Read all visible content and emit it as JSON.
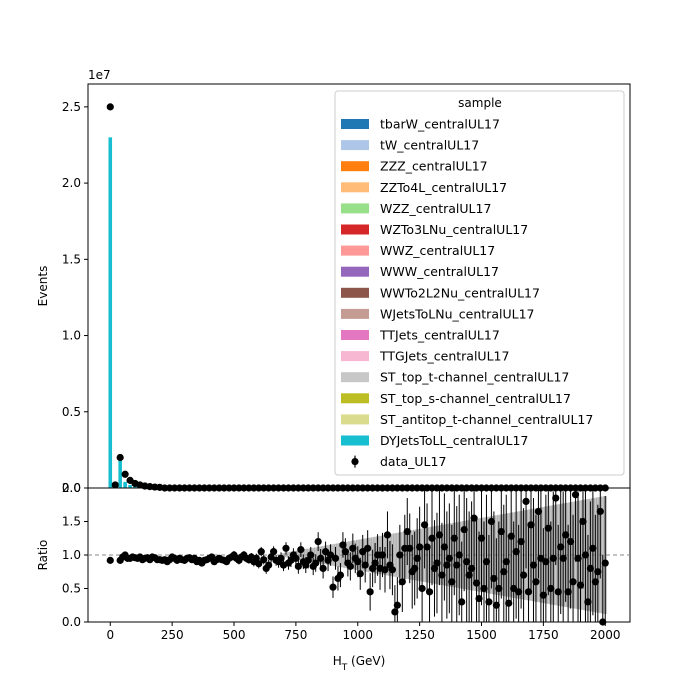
{
  "chart_data": [
    {
      "type": "bar",
      "panel": "main",
      "ylabel": "Events",
      "y_multiplier": "1e7",
      "ylim": [
        0,
        26500000
      ],
      "yticks": [
        0.0,
        0.5,
        1.0,
        1.5,
        2.0,
        2.5
      ],
      "ytick_labels": [
        "0.0",
        "0.5",
        "1.0",
        "1.5",
        "2.0",
        "2.5"
      ],
      "stacked": true,
      "legend": {
        "title": "sample",
        "placement": "upper-right",
        "entries": [
          {
            "name": "tbarW_centralUL17",
            "color": "#1f77b4",
            "marker": "patch"
          },
          {
            "name": "tW_centralUL17",
            "color": "#aec7e8",
            "marker": "patch"
          },
          {
            "name": "ZZZ_centralUL17",
            "color": "#ff7f0e",
            "marker": "patch"
          },
          {
            "name": "ZZTo4L_centralUL17",
            "color": "#ffbb78",
            "marker": "patch"
          },
          {
            "name": "WZZ_centralUL17",
            "color": "#98df8a",
            "marker": "patch"
          },
          {
            "name": "WZTo3LNu_centralUL17",
            "color": "#d62728",
            "marker": "patch"
          },
          {
            "name": "WWZ_centralUL17",
            "color": "#ff9896",
            "marker": "patch"
          },
          {
            "name": "WWW_centralUL17",
            "color": "#9467bd",
            "marker": "patch"
          },
          {
            "name": "WWTo2L2Nu_centralUL17",
            "color": "#8c564b",
            "marker": "patch"
          },
          {
            "name": "WJetsToLNu_centralUL17",
            "color": "#c49c94",
            "marker": "patch"
          },
          {
            "name": "TTJets_centralUL17",
            "color": "#e377c2",
            "marker": "patch"
          },
          {
            "name": "TTGJets_centralUL17",
            "color": "#f7b6d2",
            "marker": "patch"
          },
          {
            "name": "ST_top_t-channel_centralUL17",
            "color": "#c7c7c7",
            "marker": "patch"
          },
          {
            "name": "ST_top_s-channel_centralUL17",
            "color": "#bcbd22",
            "marker": "patch"
          },
          {
            "name": "ST_antitop_t-channel_centralUL17",
            "color": "#dbdb8d",
            "marker": "patch"
          },
          {
            "name": "DYJetsToLL_centralUL17",
            "color": "#17becf",
            "marker": "patch"
          },
          {
            "name": "data_UL17",
            "color": "#000000",
            "marker": "point"
          }
        ]
      },
      "mc_bars": [
        {
          "x": 0,
          "value": 23000000
        },
        {
          "x": 20,
          "value": 200000
        },
        {
          "x": 40,
          "value": 2000000
        },
        {
          "x": 60,
          "value": 400000
        },
        {
          "x": 80,
          "value": 200000
        },
        {
          "x": 100,
          "value": 120000
        },
        {
          "x": 120,
          "value": 80000
        },
        {
          "x": 140,
          "value": 50000
        }
      ],
      "data_points": [
        {
          "x": 0,
          "y": 25000000
        },
        {
          "x": 20,
          "y": 200000
        },
        {
          "x": 40,
          "y": 2000000
        },
        {
          "x": 60,
          "y": 900000
        },
        {
          "x": 80,
          "y": 500000
        },
        {
          "x": 100,
          "y": 300000
        },
        {
          "x": 120,
          "y": 200000
        },
        {
          "x": 140,
          "y": 130000
        },
        {
          "x": 160,
          "y": 90000
        },
        {
          "x": 180,
          "y": 60000
        },
        {
          "x": 200,
          "y": 40000
        }
      ],
      "data_tail": {
        "x_start": 220,
        "x_end": 2000,
        "step": 20,
        "y": 0
      }
    },
    {
      "type": "scatter",
      "panel": "ratio",
      "xlabel": "H_T (GeV)",
      "ylabel": "Ratio",
      "xlim": [
        -90,
        2100
      ],
      "ylim": [
        0,
        2.0
      ],
      "xticks": [
        0,
        250,
        500,
        750,
        1000,
        1250,
        1500,
        1750,
        2000
      ],
      "xtick_labels": [
        "0",
        "250",
        "500",
        "750",
        "1000",
        "1250",
        "1500",
        "1750",
        "2000"
      ],
      "yticks": [
        0.0,
        0.5,
        1.0,
        1.5,
        2.0
      ],
      "ytick_labels": [
        "0.0",
        "0.5",
        "1.0",
        "1.5",
        "2.0"
      ],
      "reference_line": 1.0,
      "points": [
        [
          0,
          0.92,
          0.02
        ],
        [
          40,
          0.92,
          0.03
        ],
        [
          50,
          0.97,
          0.03
        ],
        [
          60,
          1.0,
          0.03
        ],
        [
          70,
          0.95,
          0.03
        ],
        [
          80,
          0.95,
          0.03
        ],
        [
          90,
          0.97,
          0.03
        ],
        [
          100,
          0.96,
          0.03
        ],
        [
          110,
          0.95,
          0.03
        ],
        [
          120,
          0.97,
          0.03
        ],
        [
          130,
          0.93,
          0.03
        ],
        [
          140,
          0.95,
          0.03
        ],
        [
          150,
          0.96,
          0.03
        ],
        [
          160,
          0.93,
          0.03
        ],
        [
          170,
          0.97,
          0.03
        ],
        [
          180,
          0.96,
          0.03
        ],
        [
          190,
          0.93,
          0.03
        ],
        [
          200,
          0.93,
          0.03
        ],
        [
          210,
          0.92,
          0.04
        ],
        [
          220,
          0.93,
          0.04
        ],
        [
          230,
          0.9,
          0.04
        ],
        [
          240,
          0.93,
          0.04
        ],
        [
          250,
          0.97,
          0.04
        ],
        [
          260,
          0.95,
          0.04
        ],
        [
          270,
          0.92,
          0.04
        ],
        [
          280,
          0.95,
          0.04
        ],
        [
          290,
          0.93,
          0.04
        ],
        [
          300,
          0.92,
          0.04
        ],
        [
          310,
          0.95,
          0.04
        ],
        [
          320,
          0.96,
          0.04
        ],
        [
          330,
          0.93,
          0.04
        ],
        [
          340,
          0.95,
          0.04
        ],
        [
          350,
          0.9,
          0.04
        ],
        [
          360,
          0.92,
          0.04
        ],
        [
          370,
          0.88,
          0.05
        ],
        [
          380,
          0.92,
          0.05
        ],
        [
          390,
          0.93,
          0.05
        ],
        [
          400,
          0.95,
          0.05
        ],
        [
          410,
          0.97,
          0.05
        ],
        [
          420,
          0.9,
          0.05
        ],
        [
          430,
          0.93,
          0.05
        ],
        [
          440,
          0.95,
          0.05
        ],
        [
          450,
          0.93,
          0.05
        ],
        [
          460,
          0.92,
          0.05
        ],
        [
          470,
          0.9,
          0.05
        ],
        [
          480,
          0.95,
          0.05
        ],
        [
          490,
          0.97,
          0.05
        ],
        [
          500,
          1.0,
          0.06
        ],
        [
          510,
          0.95,
          0.06
        ],
        [
          520,
          0.92,
          0.06
        ],
        [
          530,
          0.97,
          0.06
        ],
        [
          540,
          1.0,
          0.06
        ],
        [
          550,
          0.95,
          0.06
        ],
        [
          560,
          0.93,
          0.06
        ],
        [
          570,
          0.97,
          0.06
        ],
        [
          580,
          0.9,
          0.07
        ],
        [
          590,
          0.95,
          0.07
        ],
        [
          600,
          0.87,
          0.07
        ],
        [
          610,
          1.05,
          0.07
        ],
        [
          620,
          0.93,
          0.07
        ],
        [
          630,
          0.8,
          0.08
        ],
        [
          640,
          0.85,
          0.08
        ],
        [
          650,
          0.97,
          0.08
        ],
        [
          660,
          1.05,
          0.08
        ],
        [
          670,
          0.92,
          0.08
        ],
        [
          680,
          0.9,
          0.09
        ],
        [
          690,
          0.95,
          0.09
        ],
        [
          700,
          0.85,
          0.09
        ],
        [
          710,
          1.1,
          0.09
        ],
        [
          720,
          0.88,
          0.1
        ],
        [
          730,
          0.92,
          0.1
        ],
        [
          740,
          1.0,
          0.1
        ],
        [
          750,
          0.95,
          0.1
        ],
        [
          760,
          0.83,
          0.11
        ],
        [
          770,
          1.08,
          0.11
        ],
        [
          780,
          0.9,
          0.11
        ],
        [
          790,
          0.85,
          0.12
        ],
        [
          800,
          0.92,
          0.12
        ],
        [
          810,
          1.0,
          0.12
        ],
        [
          820,
          0.83,
          0.13
        ],
        [
          830,
          0.88,
          0.13
        ],
        [
          840,
          1.2,
          0.14
        ],
        [
          850,
          0.95,
          0.14
        ],
        [
          860,
          0.8,
          0.15
        ],
        [
          870,
          1.05,
          0.15
        ],
        [
          880,
          0.92,
          0.16
        ],
        [
          890,
          1.0,
          0.16
        ],
        [
          900,
          0.52,
          0.16
        ],
        [
          910,
          0.95,
          0.17
        ],
        [
          920,
          0.65,
          0.18
        ],
        [
          930,
          0.7,
          0.18
        ],
        [
          940,
          1.15,
          0.19
        ],
        [
          950,
          1.05,
          0.2
        ],
        [
          960,
          0.88,
          0.2
        ],
        [
          970,
          0.83,
          0.21
        ],
        [
          980,
          1.1,
          0.22
        ],
        [
          990,
          0.95,
          0.22
        ],
        [
          1000,
          0.9,
          0.23
        ],
        [
          1010,
          0.72,
          0.24
        ],
        [
          1020,
          1.05,
          0.25
        ],
        [
          1030,
          0.85,
          0.26
        ],
        [
          1040,
          1.1,
          0.27
        ],
        [
          1050,
          0.45,
          0.28
        ],
        [
          1060,
          0.8,
          0.28
        ],
        [
          1070,
          0.88,
          0.3
        ],
        [
          1080,
          1.0,
          0.31
        ],
        [
          1090,
          0.8,
          0.32
        ],
        [
          1100,
          1.0,
          0.33
        ],
        [
          1110,
          0.78,
          0.34
        ],
        [
          1120,
          1.3,
          0.35
        ],
        [
          1130,
          0.85,
          0.36
        ],
        [
          1140,
          0.78,
          0.38
        ],
        [
          1150,
          0.15,
          0.4
        ],
        [
          1160,
          0.25,
          0.42
        ],
        [
          1170,
          1.0,
          0.45
        ],
        [
          1180,
          0.6,
          0.45
        ],
        [
          1190,
          1.1,
          0.5
        ],
        [
          1200,
          1.35,
          0.5
        ],
        [
          1210,
          1.1,
          0.52
        ],
        [
          1220,
          0.75,
          0.55
        ],
        [
          1230,
          0.8,
          0.55
        ],
        [
          1240,
          0.95,
          0.6
        ],
        [
          1250,
          1.12,
          0.6
        ],
        [
          1260,
          0.5,
          0.6
        ],
        [
          1270,
          1.45,
          0.65
        ],
        [
          1280,
          1.12,
          0.65
        ],
        [
          1290,
          0.45,
          0.7
        ],
        [
          1300,
          1.25,
          0.7
        ],
        [
          1310,
          0.8,
          0.72
        ],
        [
          1320,
          0.88,
          0.75
        ],
        [
          1330,
          1.3,
          0.75
        ],
        [
          1340,
          0.7,
          0.78
        ],
        [
          1350,
          1.12,
          0.8
        ],
        [
          1360,
          0.85,
          0.8
        ],
        [
          1370,
          0.95,
          0.82
        ],
        [
          1380,
          0.6,
          0.85
        ],
        [
          1390,
          1.25,
          0.85
        ],
        [
          1400,
          0.85,
          0.88
        ],
        [
          1410,
          1.0,
          0.9
        ],
        [
          1420,
          0.3,
          0.9
        ],
        [
          1430,
          1.38,
          0.92
        ],
        [
          1440,
          0.9,
          0.95
        ],
        [
          1450,
          0.7,
          0.95
        ],
        [
          1460,
          0.8,
          1.0
        ],
        [
          1470,
          1.55,
          1.0
        ],
        [
          1480,
          0.58,
          1.0
        ],
        [
          1490,
          0.35,
          1.0
        ],
        [
          1500,
          1.25,
          1.0
        ],
        [
          1510,
          0.5,
          1.0
        ],
        [
          1520,
          0.9,
          1.0
        ],
        [
          1530,
          0.3,
          1.0
        ],
        [
          1540,
          1.5,
          1.0
        ],
        [
          1550,
          0.65,
          1.0
        ],
        [
          1560,
          0.25,
          1.0
        ],
        [
          1570,
          0.5,
          1.0
        ],
        [
          1580,
          1.35,
          1.0
        ],
        [
          1590,
          0.75,
          1.0
        ],
        [
          1600,
          0.9,
          1.0
        ],
        [
          1610,
          0.28,
          1.0
        ],
        [
          1620,
          1.28,
          1.0
        ],
        [
          1630,
          0.5,
          1.0
        ],
        [
          1640,
          1.05,
          1.0
        ],
        [
          1650,
          0.45,
          1.0
        ],
        [
          1660,
          1.2,
          1.0
        ],
        [
          1670,
          0.7,
          1.0
        ],
        [
          1680,
          1.8,
          1.0
        ],
        [
          1690,
          0.45,
          1.0
        ],
        [
          1700,
          1.45,
          1.0
        ],
        [
          1710,
          0.85,
          1.0
        ],
        [
          1720,
          0.6,
          1.0
        ],
        [
          1730,
          1.65,
          1.0
        ],
        [
          1740,
          0.95,
          1.0
        ],
        [
          1750,
          0.4,
          1.0
        ],
        [
          1760,
          0.9,
          1.0
        ],
        [
          1770,
          1.4,
          1.0
        ],
        [
          1780,
          0.5,
          1.0
        ],
        [
          1790,
          0.95,
          1.0
        ],
        [
          1800,
          1.85,
          1.0
        ],
        [
          1810,
          0.45,
          1.0
        ],
        [
          1820,
          1.12,
          1.0
        ],
        [
          1830,
          0.95,
          1.0
        ],
        [
          1840,
          1.3,
          1.0
        ],
        [
          1850,
          0.45,
          1.0
        ],
        [
          1860,
          1.2,
          1.0
        ],
        [
          1870,
          0.6,
          1.0
        ],
        [
          1880,
          1.9,
          1.0
        ],
        [
          1890,
          0.95,
          1.0
        ],
        [
          1900,
          0.55,
          1.0
        ],
        [
          1910,
          1.5,
          1.0
        ],
        [
          1920,
          1.0,
          1.0
        ],
        [
          1930,
          0.3,
          1.0
        ],
        [
          1940,
          0.8,
          1.0
        ],
        [
          1950,
          1.1,
          1.0
        ],
        [
          1960,
          0.6,
          1.0
        ],
        [
          1970,
          0.75,
          1.0
        ],
        [
          1980,
          1.65,
          1.0
        ],
        [
          1990,
          0.0,
          1.0
        ],
        [
          2000,
          0.88,
          1.0
        ]
      ]
    }
  ]
}
